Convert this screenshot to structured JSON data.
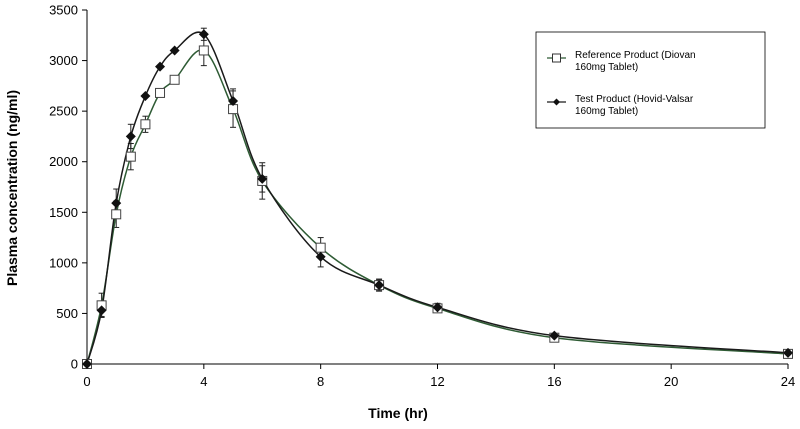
{
  "chart_data": {
    "type": "line",
    "title": "",
    "xlabel": "Time (hr)",
    "ylabel": "Plasma concentration (ng/ml)",
    "xlim": [
      0,
      24
    ],
    "ylim": [
      0,
      3500
    ],
    "xticks": [
      0,
      4,
      8,
      12,
      16,
      20,
      24
    ],
    "yticks": [
      0,
      500,
      1000,
      1500,
      2000,
      2500,
      3000,
      3500
    ],
    "grid": false,
    "legend_position": "top-right",
    "series": [
      {
        "name": "Reference Product (Diovan 160mg Tablet)",
        "marker": "open-square",
        "line_color": "#2e5b34",
        "x": [
          0,
          0.5,
          1,
          1.5,
          2,
          2.5,
          3,
          4,
          5,
          6,
          8,
          10,
          12,
          16,
          24
        ],
        "y": [
          0,
          580,
          1480,
          2050,
          2370,
          2680,
          2810,
          3100,
          2520,
          1810,
          1150,
          780,
          550,
          260,
          100
        ],
        "err": [
          0,
          120,
          130,
          130,
          80,
          0,
          0,
          150,
          180,
          180,
          100,
          60,
          40,
          0,
          0
        ]
      },
      {
        "name": "Test Product (Hovid-Valsar 160mg Tablet)",
        "marker": "filled-diamond",
        "line_color": "#1a1a1a",
        "x": [
          0,
          0.5,
          1,
          1.5,
          2,
          2.5,
          3,
          4,
          5,
          6,
          8,
          10,
          12,
          16,
          24
        ],
        "y": [
          0,
          530,
          1590,
          2250,
          2650,
          2940,
          3100,
          3260,
          2600,
          1830,
          1060,
          780,
          560,
          280,
          110
        ],
        "err": [
          0,
          60,
          140,
          120,
          0,
          0,
          0,
          60,
          120,
          130,
          100,
          50,
          40,
          0,
          0
        ]
      }
    ]
  },
  "legend": {
    "ref_line1": "Reference Product (Diovan",
    "ref_line2": "160mg Tablet)",
    "test_line1": "Test Product (Hovid-Valsar",
    "test_line2": "160mg Tablet)"
  }
}
